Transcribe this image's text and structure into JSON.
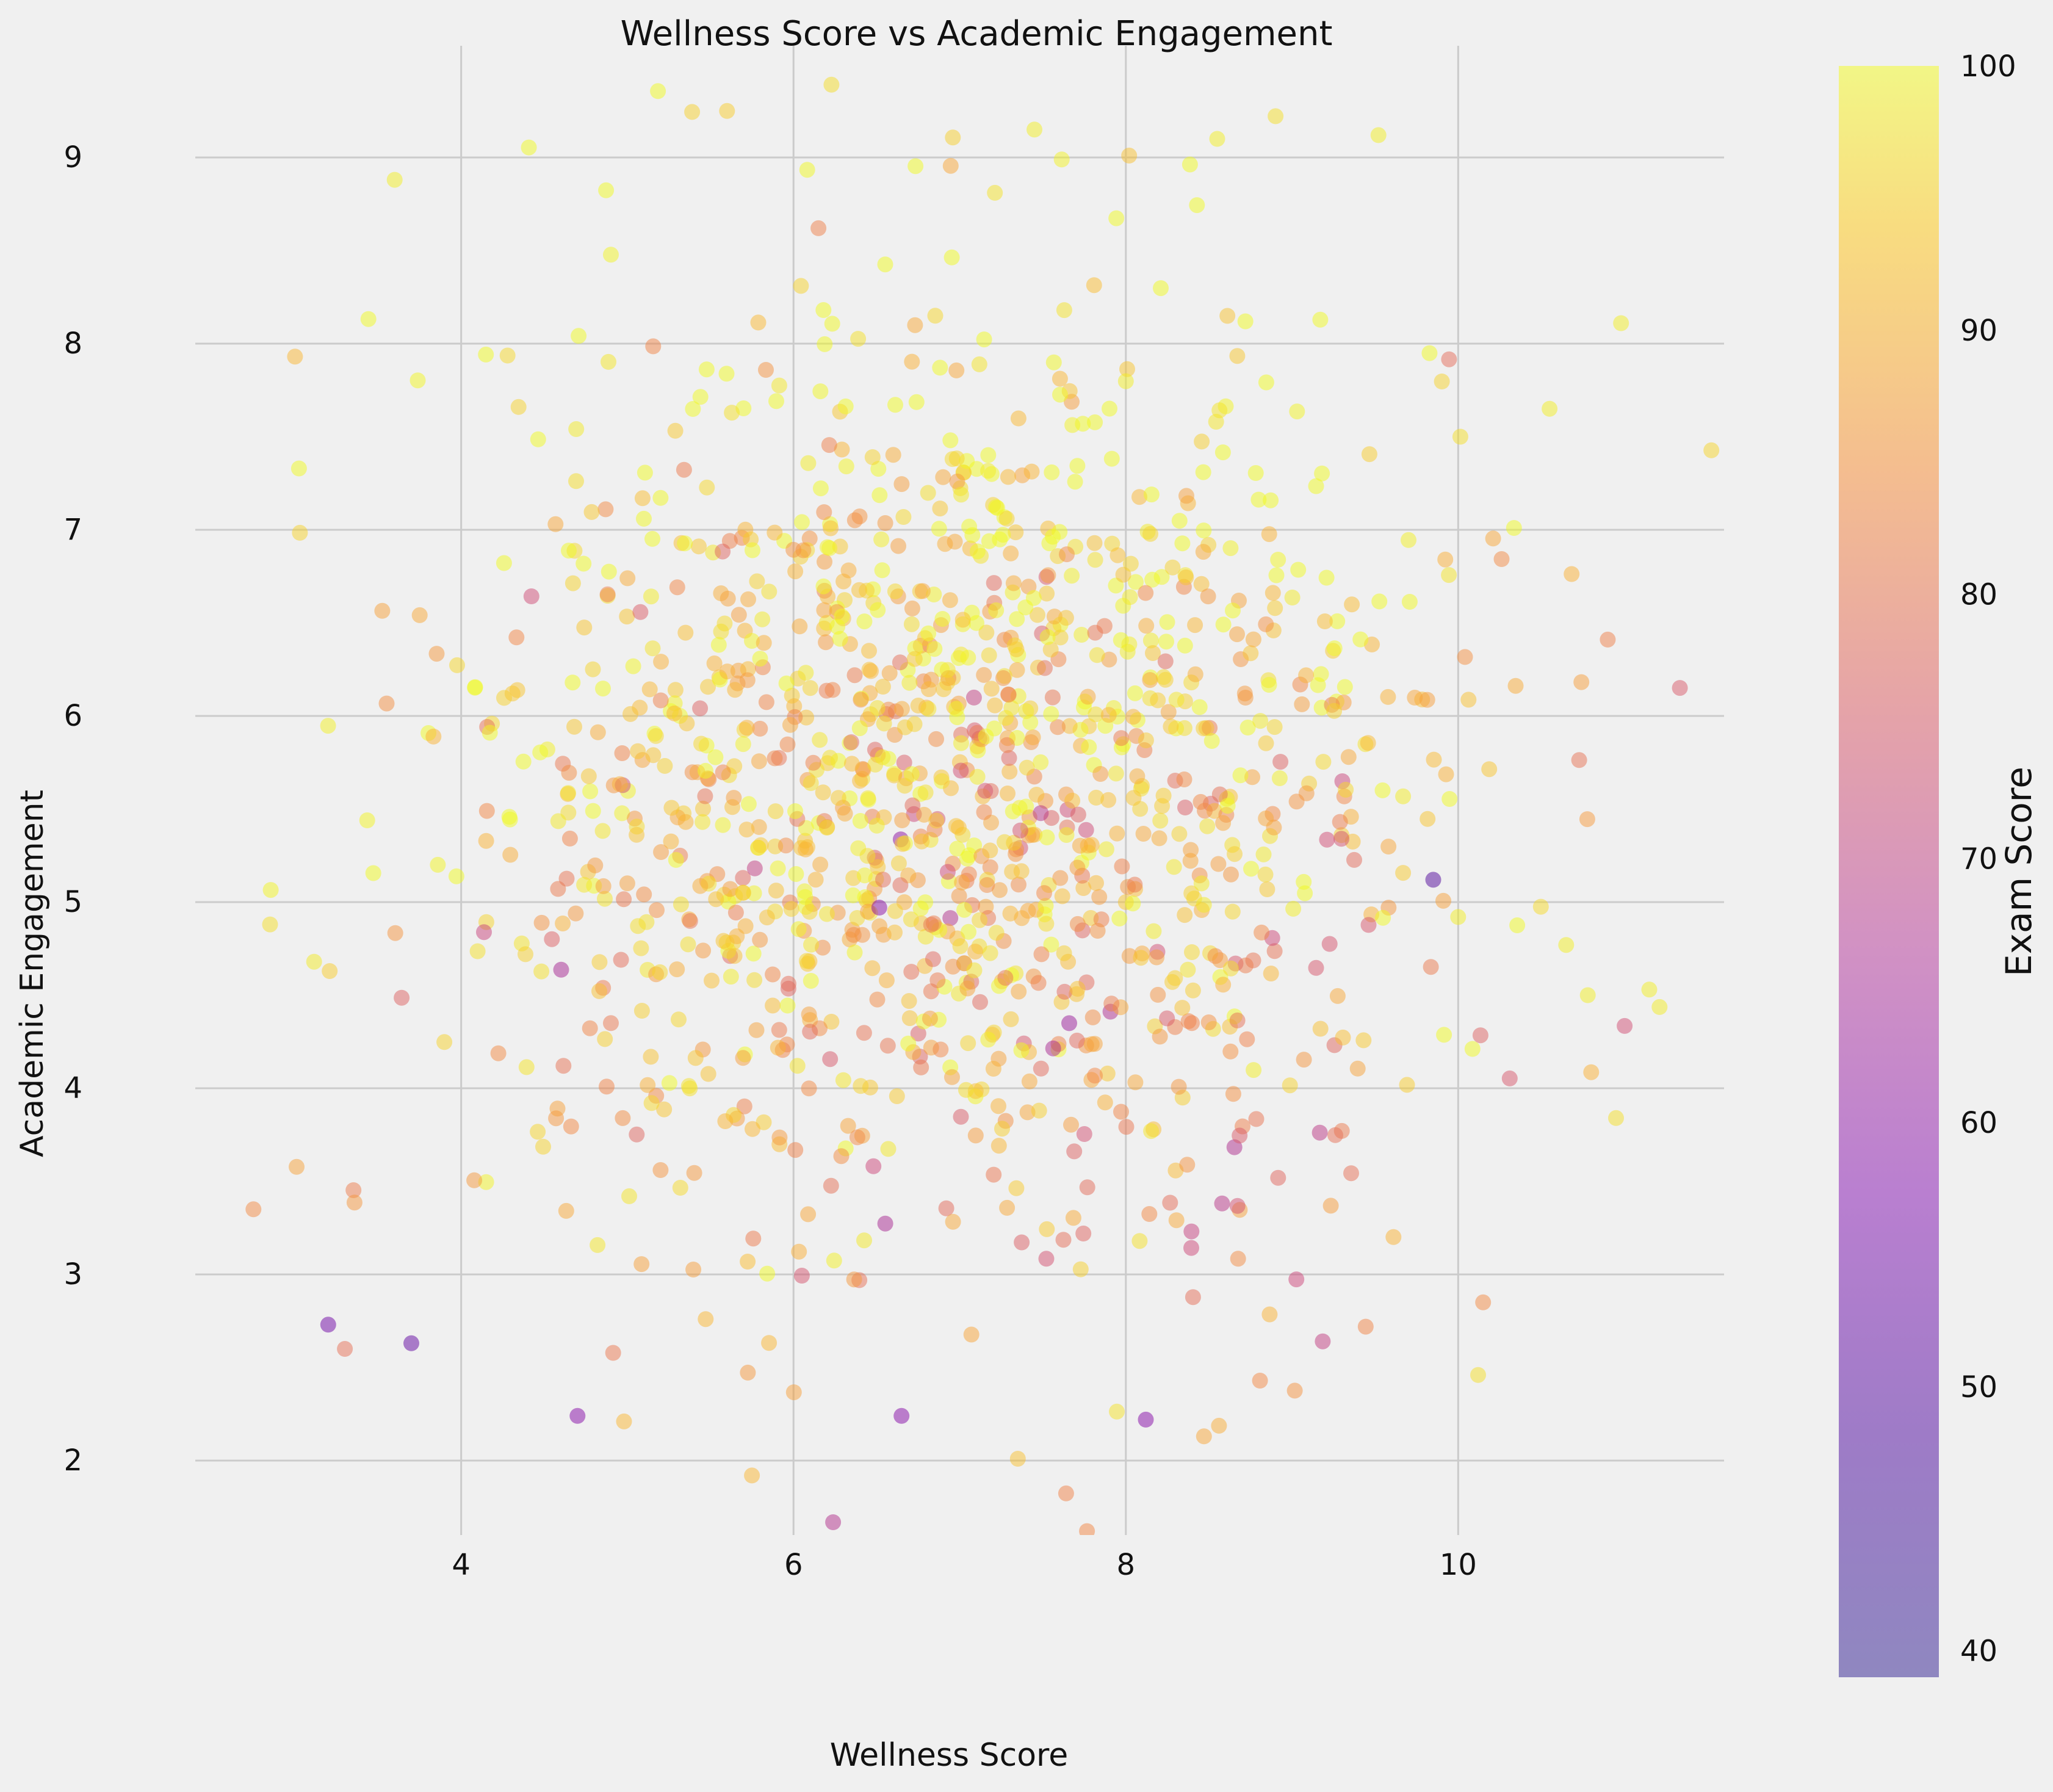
{
  "chart_data": {
    "type": "scatter",
    "title": "Wellness Score vs Academic Engagement",
    "xlabel": "Wellness Score",
    "ylabel": "Academic Engagement",
    "xlim": [
      2.4,
      11.6
    ],
    "ylim": [
      1.6,
      9.6
    ],
    "xticks": [
      4,
      6,
      8,
      10
    ],
    "yticks": [
      2,
      3,
      4,
      5,
      6,
      7,
      8,
      9
    ],
    "grid": true,
    "colorbar": {
      "label": "Exam Score",
      "range": [
        39,
        100
      ],
      "ticks": [
        40,
        50,
        60,
        70,
        80,
        90,
        100
      ],
      "colormap": "plasma",
      "alpha": 0.5
    },
    "point_distribution": {
      "count": 1400,
      "x_mean": 6.95,
      "x_sd": 1.45,
      "y_mean": 5.6,
      "y_sd": 1.3,
      "color_mean": 90,
      "color_sd": 10
    },
    "sample_points": [
      {
        "x": 2.75,
        "y": 3.35,
        "c": 80
      },
      {
        "x": 2.85,
        "y": 4.88,
        "c": 95
      },
      {
        "x": 3.0,
        "y": 7.93,
        "c": 88
      },
      {
        "x": 3.2,
        "y": 2.73,
        "c": 52
      },
      {
        "x": 3.3,
        "y": 2.6,
        "c": 75
      },
      {
        "x": 3.6,
        "y": 8.88,
        "c": 98
      },
      {
        "x": 3.7,
        "y": 2.63,
        "c": 50
      },
      {
        "x": 4.7,
        "y": 2.24,
        "c": 55
      },
      {
        "x": 4.98,
        "y": 2.21,
        "c": 88
      },
      {
        "x": 5.6,
        "y": 9.25,
        "c": 92
      },
      {
        "x": 5.75,
        "y": 1.92,
        "c": 88
      },
      {
        "x": 6.15,
        "y": 8.62,
        "c": 78
      },
      {
        "x": 6.65,
        "y": 2.24,
        "c": 55
      },
      {
        "x": 7.35,
        "y": 2.01,
        "c": 90
      },
      {
        "x": 7.45,
        "y": 9.15,
        "c": 98
      },
      {
        "x": 8.02,
        "y": 9.01,
        "c": 90
      },
      {
        "x": 8.12,
        "y": 2.22,
        "c": 55
      },
      {
        "x": 8.47,
        "y": 2.13,
        "c": 85
      },
      {
        "x": 8.55,
        "y": 9.1,
        "c": 98
      },
      {
        "x": 9.52,
        "y": 9.12,
        "c": 98
      },
      {
        "x": 10.15,
        "y": 2.85,
        "c": 80
      },
      {
        "x": 10.12,
        "y": 2.46,
        "c": 95
      },
      {
        "x": 10.55,
        "y": 7.65,
        "c": 98
      },
      {
        "x": 10.65,
        "y": 4.77,
        "c": 98
      },
      {
        "x": 10.78,
        "y": 4.5,
        "c": 98
      },
      {
        "x": 10.9,
        "y": 6.41,
        "c": 78
      },
      {
        "x": 10.95,
        "y": 3.84,
        "c": 95
      },
      {
        "x": 10.98,
        "y": 8.11,
        "c": 98
      },
      {
        "x": 11.15,
        "y": 4.53,
        "c": 98
      },
      {
        "x": 10.0,
        "y": 4.92,
        "c": 98
      },
      {
        "x": 9.85,
        "y": 5.12,
        "c": 48
      }
    ]
  }
}
